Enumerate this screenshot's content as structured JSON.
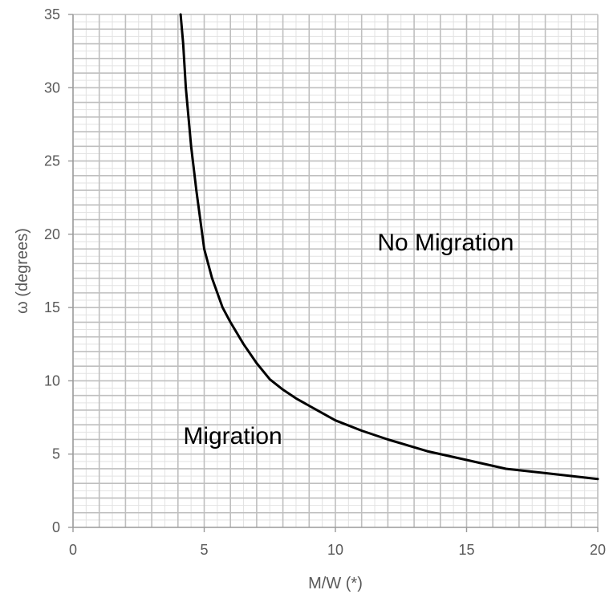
{
  "chart_data": {
    "type": "line",
    "xlabel": "M/W (*)",
    "ylabel": "ω (degrees)",
    "xlim": [
      0,
      20
    ],
    "ylim": [
      0,
      35
    ],
    "x_ticks": [
      "0",
      "5",
      "10",
      "15",
      "20"
    ],
    "y_ticks": [
      "0",
      "5",
      "10",
      "15",
      "20",
      "25",
      "30",
      "35"
    ],
    "grid": {
      "major_x_step": 1,
      "major_y_step": 1,
      "minor": true
    },
    "series": [
      {
        "x": [
          4.1,
          4.2,
          4.3,
          4.5,
          4.7,
          5.0,
          5.3,
          5.7,
          6.0,
          6.5,
          7.0,
          7.5,
          8.0,
          8.5,
          9.0,
          10.0,
          11.0,
          12.0,
          13.5,
          15.0,
          16.5,
          18.0,
          20.0
        ],
        "y": [
          35,
          33,
          30,
          26,
          23,
          19,
          17,
          15,
          14,
          12.5,
          11.2,
          10.1,
          9.4,
          8.8,
          8.3,
          7.3,
          6.6,
          6.0,
          5.2,
          4.6,
          4.0,
          3.7,
          3.3
        ],
        "color": "#000000"
      }
    ],
    "annotations": [
      {
        "text": "No Migration",
        "x": 11.6,
        "y": 18.9
      },
      {
        "text": "Migration",
        "x": 4.2,
        "y": 5.7
      }
    ]
  }
}
